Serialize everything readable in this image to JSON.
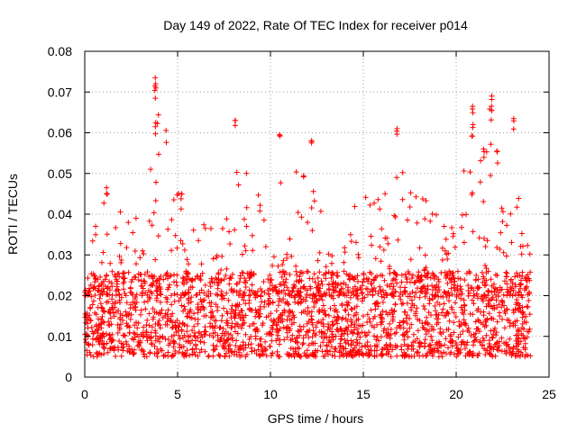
{
  "chart_data": {
    "type": "scatter",
    "title": "Day 149 of 2022, Rate Of TEC Index for receiver p014",
    "xlabel": "GPS time / hours",
    "ylabel": "ROTI / TECUs",
    "xlim": [
      0,
      25
    ],
    "ylim": [
      0,
      0.08
    ],
    "x_ticks": [
      0,
      5,
      10,
      15,
      20,
      25
    ],
    "x_tick_labels": [
      "0",
      "5",
      "10",
      "15",
      "20",
      "25"
    ],
    "y_ticks": [
      0,
      0.01,
      0.02,
      0.03,
      0.04,
      0.05,
      0.06,
      0.07,
      0.08
    ],
    "y_tick_labels": [
      "0",
      "0.01",
      "0.02",
      "0.03",
      "0.04",
      "0.05",
      "0.06",
      "0.07",
      "0.08"
    ],
    "grid": true,
    "marker": "+",
    "color": "#ff0000",
    "series": [
      {
        "name": "ROTI",
        "x_range": [
          0,
          24
        ],
        "typical_range": [
          0.005,
          0.02
        ],
        "envelope": [
          {
            "x": 0.5,
            "y": 0.038
          },
          {
            "x": 1.2,
            "y": 0.047
          },
          {
            "x": 2.5,
            "y": 0.041
          },
          {
            "x": 3.1,
            "y": 0.046
          },
          {
            "x": 3.8,
            "y": 0.0735
          },
          {
            "x": 5.2,
            "y": 0.045
          },
          {
            "x": 6.5,
            "y": 0.037
          },
          {
            "x": 7.8,
            "y": 0.044
          },
          {
            "x": 8.1,
            "y": 0.063
          },
          {
            "x": 9.0,
            "y": 0.048
          },
          {
            "x": 10.0,
            "y": 0.044
          },
          {
            "x": 10.5,
            "y": 0.0595
          },
          {
            "x": 11.4,
            "y": 0.052
          },
          {
            "x": 12.2,
            "y": 0.058
          },
          {
            "x": 13.0,
            "y": 0.035
          },
          {
            "x": 14.0,
            "y": 0.04
          },
          {
            "x": 15.0,
            "y": 0.045
          },
          {
            "x": 16.0,
            "y": 0.044
          },
          {
            "x": 16.8,
            "y": 0.061
          },
          {
            "x": 17.9,
            "y": 0.048
          },
          {
            "x": 19.0,
            "y": 0.04
          },
          {
            "x": 20.0,
            "y": 0.038
          },
          {
            "x": 20.9,
            "y": 0.0665
          },
          {
            "x": 21.5,
            "y": 0.056
          },
          {
            "x": 21.9,
            "y": 0.069
          },
          {
            "x": 22.5,
            "y": 0.046
          },
          {
            "x": 23.1,
            "y": 0.0635
          },
          {
            "x": 23.5,
            "y": 0.053
          },
          {
            "x": 24.0,
            "y": 0.03
          }
        ],
        "notable_points": [
          {
            "x": 3.8,
            "y": 0.0735
          },
          {
            "x": 3.8,
            "y": 0.071
          },
          {
            "x": 3.8,
            "y": 0.0625
          },
          {
            "x": 8.1,
            "y": 0.063
          },
          {
            "x": 10.5,
            "y": 0.0595
          },
          {
            "x": 12.2,
            "y": 0.058
          },
          {
            "x": 16.8,
            "y": 0.061
          },
          {
            "x": 20.9,
            "y": 0.0665
          },
          {
            "x": 20.9,
            "y": 0.062
          },
          {
            "x": 21.9,
            "y": 0.069
          },
          {
            "x": 21.9,
            "y": 0.0655
          },
          {
            "x": 23.1,
            "y": 0.0635
          },
          {
            "x": 22.2,
            "y": 0.0555
          },
          {
            "x": 21.5,
            "y": 0.056
          },
          {
            "x": 1.2,
            "y": 0.0465
          },
          {
            "x": 5.2,
            "y": 0.045
          }
        ]
      }
    ]
  }
}
